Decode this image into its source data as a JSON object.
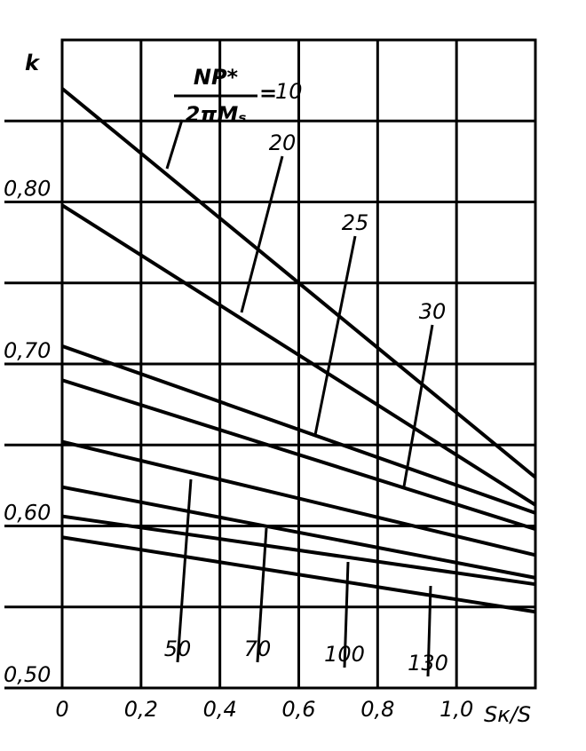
{
  "chart_data": {
    "type": "line",
    "y_label": "k",
    "x_label": "Sк/S",
    "annotation_numerator": "NP*",
    "annotation_denominator": "2πMₛ",
    "annotation_equals": "=",
    "xlim": [
      0,
      1.2
    ],
    "xticks": [
      0,
      {
        "value": 0.2,
        "label": "0,2"
      },
      {
        "value": 0.4,
        "label": "0,4"
      },
      {
        "value": 0.6,
        "label": "0,6"
      },
      {
        "value": 0.8,
        "label": "0,8"
      },
      {
        "value": 1.0,
        "label": "1,0"
      }
    ],
    "ylim": [
      0.5,
      0.9
    ],
    "yticks": [
      {
        "value": 0.5,
        "label": "0,50"
      },
      {
        "value": 0.6,
        "label": "0,60"
      },
      {
        "value": 0.7,
        "label": "0,70"
      },
      {
        "value": 0.8,
        "label": "0,80"
      }
    ],
    "yminor": [
      0.55,
      0.65,
      0.75,
      0.85
    ],
    "grid": true,
    "x": [
      0,
      1.2
    ],
    "series": [
      {
        "name": "10",
        "color": "#000000",
        "values": [
          0.87,
          0.63
        ]
      },
      {
        "name": "20",
        "color": "#000000",
        "values": [
          0.798,
          0.613
        ]
      },
      {
        "name": "25",
        "color": "#000000",
        "values": [
          0.711,
          0.608
        ]
      },
      {
        "name": "30",
        "color": "#000000",
        "values": [
          0.69,
          0.598
        ]
      },
      {
        "name": "50",
        "color": "#000000",
        "values": [
          0.652,
          0.582
        ]
      },
      {
        "name": "70",
        "color": "#000000",
        "values": [
          0.624,
          0.568
        ]
      },
      {
        "name": "100",
        "color": "#000000",
        "values": [
          0.606,
          0.564
        ]
      },
      {
        "name": "130",
        "color": "#000000",
        "values": [
          0.593,
          0.547
        ]
      }
    ]
  }
}
